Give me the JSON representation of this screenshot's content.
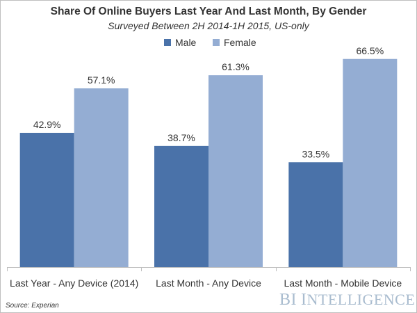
{
  "chart_data": {
    "type": "bar",
    "title": "Share Of Online Buyers Last Year And Last Month, By Gender",
    "subtitle": "Surveyed Between 2H 2014-1H 2015, US-only",
    "categories": [
      "Last Year - Any Device (2014)",
      "Last Month - Any Device",
      "Last Month - Mobile Device"
    ],
    "series": [
      {
        "name": "Male",
        "values": [
          42.9,
          38.7,
          33.5
        ],
        "labels": [
          "42.9%",
          "38.7%",
          "33.5%"
        ],
        "color": "#4a72a9"
      },
      {
        "name": "Female",
        "values": [
          57.1,
          61.3,
          66.5
        ],
        "labels": [
          "57.1%",
          "61.3%",
          "66.5%"
        ],
        "color": "#94add3"
      }
    ],
    "ylim": [
      0,
      70
    ],
    "grid": false,
    "legend": "top-center"
  },
  "source": "Source: Experian",
  "brand": {
    "first": "BI",
    "second": "I",
    "rest": "NTELLIGENCE"
  },
  "colors": {
    "text": "#333333",
    "axis": "#bfbfbf",
    "brand": "#a9bccf"
  }
}
